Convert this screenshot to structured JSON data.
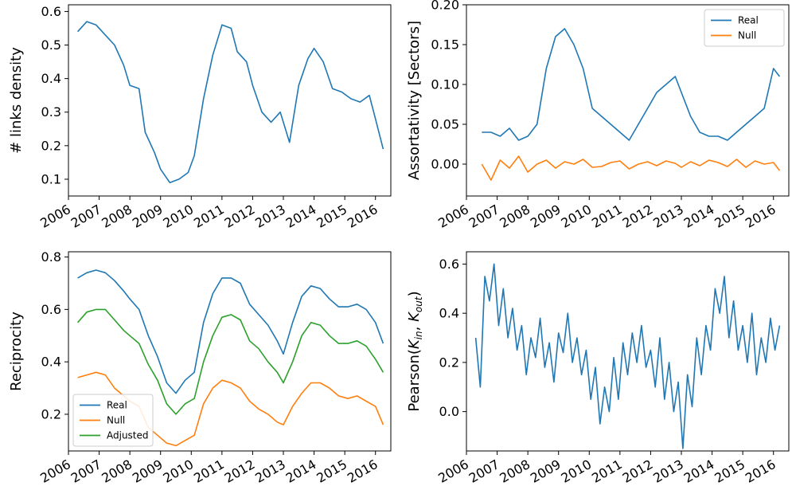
{
  "colors": {
    "Real": "#1f77b4",
    "Null": "#ff7f0e",
    "Adjusted": "#2ca02c"
  },
  "chart_data": [
    {
      "type": "line",
      "panel": "top-left",
      "ylabel": "# links density",
      "xlim": [
        2006.0,
        2016.5
      ],
      "ylim": [
        0.05,
        0.62
      ],
      "xticks": [
        "2006",
        "2007",
        "2008",
        "2009",
        "2010",
        "2011",
        "2012",
        "2013",
        "2014",
        "2015",
        "2016"
      ],
      "yticks": [
        "0.1",
        "0.2",
        "0.3",
        "0.4",
        "0.5",
        "0.6"
      ],
      "legend": null,
      "series": [
        {
          "name": "",
          "color": "#1f77b4",
          "x": [
            2006.3,
            2006.6,
            2006.9,
            2007.2,
            2007.5,
            2007.8,
            2008.0,
            2008.3,
            2008.5,
            2008.8,
            2009.0,
            2009.3,
            2009.6,
            2009.9,
            2010.1,
            2010.4,
            2010.7,
            2011.0,
            2011.3,
            2011.5,
            2011.8,
            2012.0,
            2012.3,
            2012.6,
            2012.9,
            2013.2,
            2013.5,
            2013.8,
            2014.0,
            2014.3,
            2014.6,
            2014.9,
            2015.2,
            2015.5,
            2015.8,
            2016.0,
            2016.25
          ],
          "y": [
            0.54,
            0.57,
            0.56,
            0.53,
            0.5,
            0.44,
            0.38,
            0.37,
            0.24,
            0.18,
            0.13,
            0.09,
            0.1,
            0.12,
            0.17,
            0.34,
            0.47,
            0.56,
            0.55,
            0.48,
            0.45,
            0.38,
            0.3,
            0.27,
            0.3,
            0.21,
            0.38,
            0.46,
            0.49,
            0.45,
            0.37,
            0.36,
            0.34,
            0.33,
            0.35,
            0.28,
            0.19
          ]
        }
      ]
    },
    {
      "type": "line",
      "panel": "top-right",
      "ylabel": "Assortativity [Sectors]",
      "xlim": [
        2006.0,
        2016.5
      ],
      "ylim": [
        -0.04,
        0.2
      ],
      "xticks": [
        "2006",
        "2007",
        "2008",
        "2009",
        "2010",
        "2011",
        "2012",
        "2013",
        "2014",
        "2015",
        "2016"
      ],
      "yticks": [
        "0.00",
        "0.05",
        "0.10",
        "0.15",
        "0.20"
      ],
      "legend": "top-right",
      "series": [
        {
          "name": "Real",
          "color": "#1f77b4",
          "x": [
            2006.5,
            2006.8,
            2007.1,
            2007.4,
            2007.7,
            2008.0,
            2008.3,
            2008.6,
            2008.9,
            2009.2,
            2009.5,
            2009.8,
            2010.1,
            2010.4,
            2010.7,
            2011.0,
            2011.3,
            2011.6,
            2011.9,
            2012.2,
            2012.5,
            2012.8,
            2013.0,
            2013.3,
            2013.6,
            2013.9,
            2014.2,
            2014.5,
            2014.8,
            2015.1,
            2015.4,
            2015.7,
            2016.0,
            2016.2
          ],
          "y": [
            0.04,
            0.04,
            0.035,
            0.045,
            0.03,
            0.035,
            0.05,
            0.12,
            0.16,
            0.17,
            0.15,
            0.12,
            0.07,
            0.06,
            0.05,
            0.04,
            0.03,
            0.05,
            0.07,
            0.09,
            0.1,
            0.11,
            0.09,
            0.06,
            0.04,
            0.035,
            0.035,
            0.03,
            0.04,
            0.05,
            0.06,
            0.07,
            0.12,
            0.11
          ]
        },
        {
          "name": "Null",
          "color": "#ff7f0e",
          "x": [
            2006.5,
            2006.8,
            2007.1,
            2007.4,
            2007.7,
            2008.0,
            2008.3,
            2008.6,
            2008.9,
            2009.2,
            2009.5,
            2009.8,
            2010.1,
            2010.4,
            2010.7,
            2011.0,
            2011.3,
            2011.6,
            2011.9,
            2012.2,
            2012.5,
            2012.8,
            2013.0,
            2013.3,
            2013.6,
            2013.9,
            2014.2,
            2014.5,
            2014.8,
            2015.1,
            2015.4,
            2015.7,
            2016.0,
            2016.2
          ],
          "y": [
            0.0,
            -0.02,
            0.005,
            -0.005,
            0.01,
            -0.01,
            0.0,
            0.005,
            -0.005,
            0.003,
            0.0,
            0.006,
            -0.004,
            -0.003,
            0.002,
            0.004,
            -0.006,
            0.0,
            0.003,
            -0.002,
            0.004,
            0.001,
            -0.004,
            0.003,
            -0.002,
            0.005,
            0.002,
            -0.003,
            0.006,
            -0.004,
            0.004,
            0.0,
            0.002,
            -0.008
          ]
        }
      ]
    },
    {
      "type": "line",
      "panel": "bottom-left",
      "ylabel": "Reciprocity",
      "xlim": [
        2006.0,
        2016.5
      ],
      "ylim": [
        0.06,
        0.82
      ],
      "xticks": [
        "2006",
        "2007",
        "2008",
        "2009",
        "2010",
        "2011",
        "2012",
        "2013",
        "2014",
        "2015",
        "2016"
      ],
      "yticks": [
        "0.2",
        "0.4",
        "0.6",
        "0.8"
      ],
      "legend": "bottom-left",
      "series": [
        {
          "name": "Real",
          "color": "#1f77b4",
          "x": [
            2006.3,
            2006.6,
            2006.9,
            2007.2,
            2007.5,
            2007.8,
            2008.0,
            2008.3,
            2008.6,
            2008.9,
            2009.2,
            2009.5,
            2009.8,
            2010.1,
            2010.4,
            2010.7,
            2011.0,
            2011.3,
            2011.6,
            2011.9,
            2012.2,
            2012.5,
            2012.8,
            2013.0,
            2013.3,
            2013.6,
            2013.9,
            2014.2,
            2014.5,
            2014.8,
            2015.1,
            2015.4,
            2015.7,
            2016.0,
            2016.25
          ],
          "y": [
            0.72,
            0.74,
            0.75,
            0.74,
            0.71,
            0.67,
            0.64,
            0.6,
            0.5,
            0.42,
            0.32,
            0.28,
            0.33,
            0.36,
            0.55,
            0.66,
            0.72,
            0.72,
            0.7,
            0.62,
            0.58,
            0.54,
            0.48,
            0.43,
            0.55,
            0.65,
            0.69,
            0.68,
            0.64,
            0.61,
            0.61,
            0.62,
            0.6,
            0.55,
            0.47
          ]
        },
        {
          "name": "Null",
          "color": "#ff7f0e",
          "x": [
            2006.3,
            2006.6,
            2006.9,
            2007.2,
            2007.5,
            2007.8,
            2008.0,
            2008.3,
            2008.6,
            2008.9,
            2009.2,
            2009.5,
            2009.8,
            2010.1,
            2010.4,
            2010.7,
            2011.0,
            2011.3,
            2011.6,
            2011.9,
            2012.2,
            2012.5,
            2012.8,
            2013.0,
            2013.3,
            2013.6,
            2013.9,
            2014.2,
            2014.5,
            2014.8,
            2015.1,
            2015.4,
            2015.7,
            2016.0,
            2016.25
          ],
          "y": [
            0.34,
            0.35,
            0.36,
            0.35,
            0.3,
            0.27,
            0.25,
            0.23,
            0.15,
            0.12,
            0.09,
            0.08,
            0.1,
            0.12,
            0.24,
            0.3,
            0.33,
            0.32,
            0.3,
            0.25,
            0.22,
            0.2,
            0.17,
            0.16,
            0.23,
            0.28,
            0.32,
            0.32,
            0.3,
            0.27,
            0.26,
            0.27,
            0.25,
            0.23,
            0.16
          ]
        },
        {
          "name": "Adjusted",
          "color": "#2ca02c",
          "x": [
            2006.3,
            2006.6,
            2006.9,
            2007.2,
            2007.5,
            2007.8,
            2008.0,
            2008.3,
            2008.6,
            2008.9,
            2009.2,
            2009.5,
            2009.8,
            2010.1,
            2010.4,
            2010.7,
            2011.0,
            2011.3,
            2011.6,
            2011.9,
            2012.2,
            2012.5,
            2012.8,
            2013.0,
            2013.3,
            2013.6,
            2013.9,
            2014.2,
            2014.5,
            2014.8,
            2015.1,
            2015.4,
            2015.7,
            2016.0,
            2016.25
          ],
          "y": [
            0.55,
            0.59,
            0.6,
            0.6,
            0.56,
            0.52,
            0.5,
            0.47,
            0.39,
            0.33,
            0.24,
            0.2,
            0.24,
            0.26,
            0.4,
            0.5,
            0.57,
            0.58,
            0.56,
            0.48,
            0.45,
            0.4,
            0.36,
            0.32,
            0.4,
            0.5,
            0.55,
            0.54,
            0.5,
            0.47,
            0.47,
            0.48,
            0.46,
            0.41,
            0.36
          ]
        }
      ]
    },
    {
      "type": "line",
      "panel": "bottom-right",
      "ylabel": "Pearson(K_in, K_out)",
      "xlim": [
        2006.0,
        2016.5
      ],
      "ylim": [
        -0.16,
        0.65
      ],
      "xticks": [
        "2006",
        "2007",
        "2008",
        "2009",
        "2010",
        "2011",
        "2012",
        "2013",
        "2014",
        "2015",
        "2016"
      ],
      "yticks": [
        "0.0",
        "0.2",
        "0.4",
        "0.6"
      ],
      "legend": null,
      "series": [
        {
          "name": "",
          "color": "#1f77b4",
          "x": [
            2006.3,
            2006.45,
            2006.6,
            2006.75,
            2006.9,
            2007.05,
            2007.2,
            2007.35,
            2007.5,
            2007.65,
            2007.8,
            2007.95,
            2008.1,
            2008.25,
            2008.4,
            2008.55,
            2008.7,
            2008.85,
            2009.0,
            2009.15,
            2009.3,
            2009.45,
            2009.6,
            2009.75,
            2009.9,
            2010.05,
            2010.2,
            2010.35,
            2010.5,
            2010.65,
            2010.8,
            2010.95,
            2011.1,
            2011.25,
            2011.4,
            2011.55,
            2011.7,
            2011.85,
            2012.0,
            2012.15,
            2012.3,
            2012.45,
            2012.6,
            2012.75,
            2012.9,
            2013.05,
            2013.2,
            2013.35,
            2013.5,
            2013.65,
            2013.8,
            2013.95,
            2014.1,
            2014.25,
            2014.4,
            2014.55,
            2014.7,
            2014.85,
            2015.0,
            2015.15,
            2015.3,
            2015.45,
            2015.6,
            2015.75,
            2015.9,
            2016.05,
            2016.2
          ],
          "y": [
            0.3,
            0.1,
            0.55,
            0.45,
            0.6,
            0.35,
            0.5,
            0.3,
            0.42,
            0.25,
            0.35,
            0.15,
            0.3,
            0.22,
            0.38,
            0.18,
            0.28,
            0.12,
            0.32,
            0.24,
            0.4,
            0.2,
            0.3,
            0.15,
            0.25,
            0.05,
            0.18,
            -0.05,
            0.1,
            0.0,
            0.22,
            0.05,
            0.28,
            0.15,
            0.32,
            0.2,
            0.35,
            0.18,
            0.25,
            0.1,
            0.3,
            0.05,
            0.2,
            0.0,
            0.12,
            -0.15,
            0.15,
            0.02,
            0.3,
            0.15,
            0.35,
            0.25,
            0.5,
            0.4,
            0.55,
            0.3,
            0.45,
            0.25,
            0.35,
            0.2,
            0.4,
            0.15,
            0.3,
            0.2,
            0.38,
            0.25,
            0.35
          ]
        }
      ]
    }
  ]
}
